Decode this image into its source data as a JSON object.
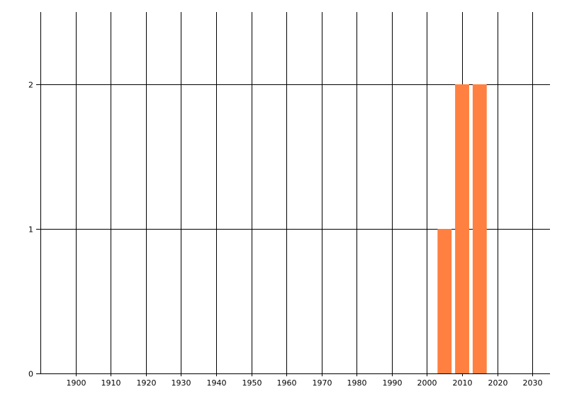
{
  "chart_data": {
    "type": "bar",
    "title": "",
    "xlabel": "",
    "ylabel": "",
    "x": [
      2005,
      2010,
      2015
    ],
    "values": [
      1,
      2,
      2
    ],
    "bar_width_years": 4,
    "xlim": [
      1890,
      2035
    ],
    "ylim": [
      0,
      2.5
    ],
    "x_ticks": [
      "1900",
      "1910",
      "1920",
      "1930",
      "1940",
      "1950",
      "1960",
      "1970",
      "1980",
      "1990",
      "2000",
      "2010",
      "2020",
      "2030"
    ],
    "y_ticks": [
      "0",
      "1",
      "2"
    ],
    "grid": true,
    "bar_color": "#FF8040",
    "grid_color": "#000000"
  }
}
